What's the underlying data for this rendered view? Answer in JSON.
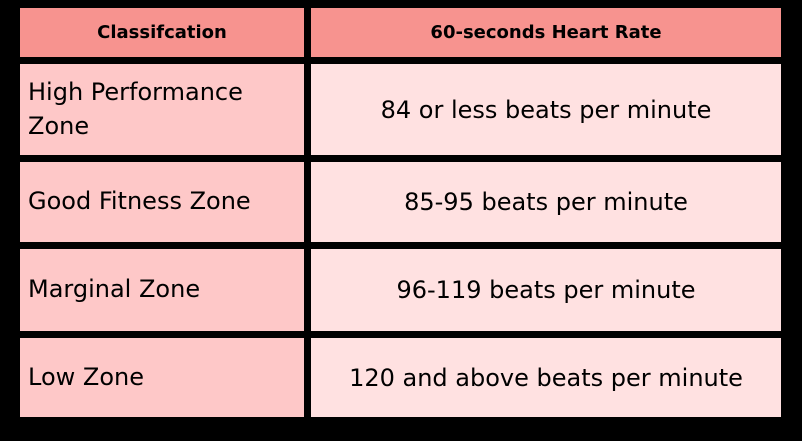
{
  "colors": {
    "background": "#000000",
    "header": "#f7938f",
    "label_cells": "#fec8c8",
    "value_cells": "#ffe1e1"
  },
  "table": {
    "headers": [
      "Classifcation",
      "60-seconds Heart Rate"
    ],
    "rows": [
      {
        "classification": "High Performance Zone",
        "heart_rate": "84 or less beats per minute"
      },
      {
        "classification": "Good Fitness Zone",
        "heart_rate": "85-95 beats per minute"
      },
      {
        "classification": "Marginal Zone",
        "heart_rate": "96-119 beats per minute"
      },
      {
        "classification": "Low Zone",
        "heart_rate": "120 and above beats per minute"
      }
    ]
  }
}
